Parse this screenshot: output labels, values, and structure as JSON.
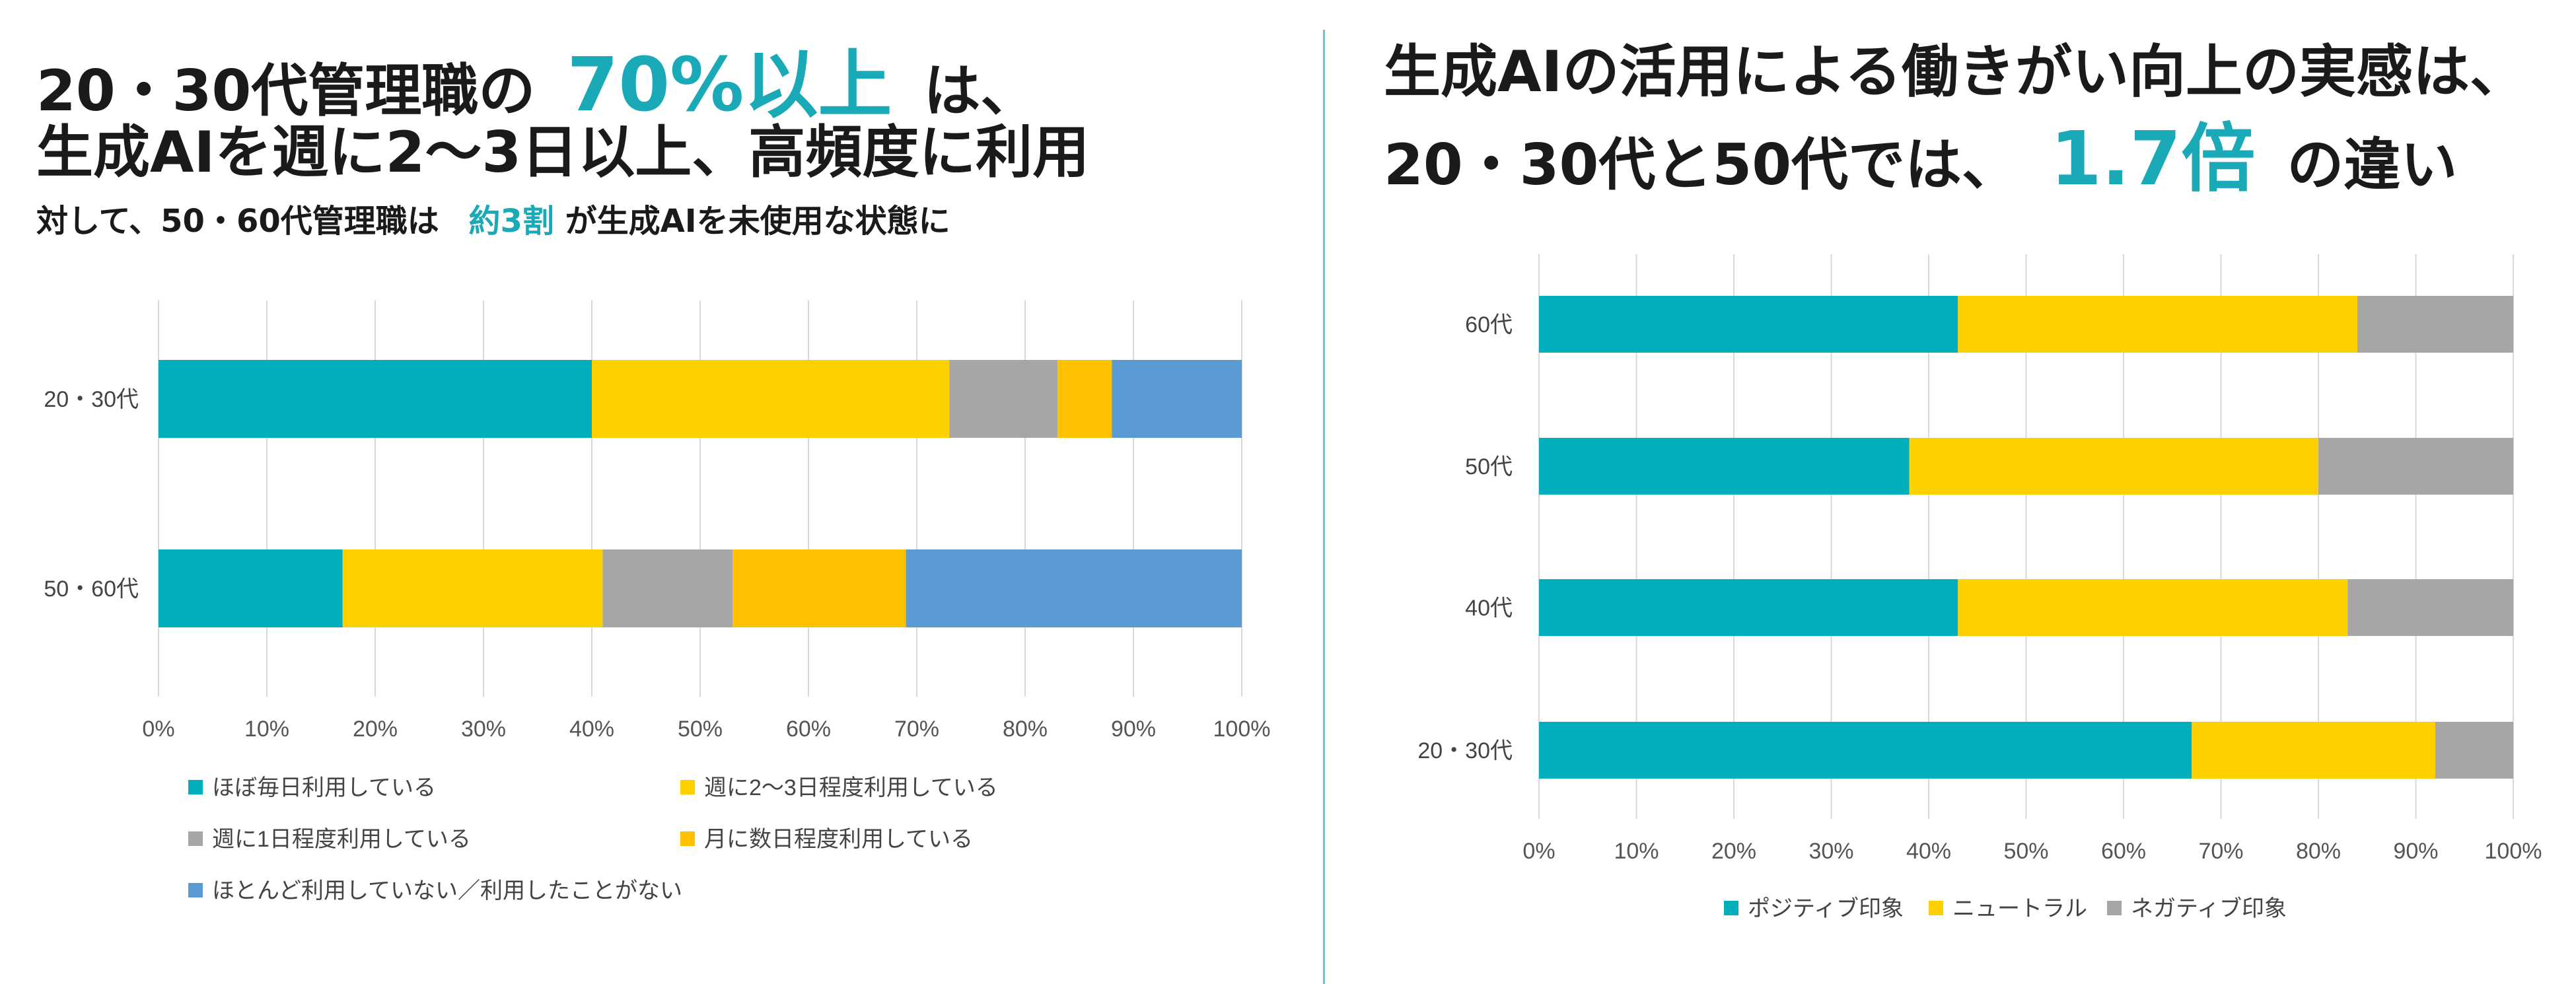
{
  "left": {
    "headline1_pre": "20・30代管理職の",
    "headline1_hl": "70%以上",
    "headline1_post": "は、",
    "headline2": "生成AIを週に2〜3日以上、高頻度に利用",
    "sub_pre": "対して、50・60代管理職は",
    "sub_hl": "約3割",
    "sub_post": "が生成AIを未使用な状態に"
  },
  "right": {
    "headline1": "生成AIの活用による働きがい向上の実感は、",
    "headline2_pre": "20・30代と50代では、",
    "headline2_hl": "1.7倍",
    "headline2_post": "の違い"
  },
  "colors": {
    "teal": "#00AFBB",
    "yellow": "#FFD000",
    "gray": "#A6A6A6",
    "orange": "#FFC000",
    "blue": "#5B9BD5",
    "accent": "#1AA9B7"
  },
  "chart_data": [
    {
      "type": "bar",
      "orientation": "horizontal",
      "stacked": "percent",
      "categories": [
        "20・30代",
        "50・60代"
      ],
      "series": [
        {
          "name": "ほぼ毎日利用している",
          "color": "#00AFBB",
          "values": [
            40,
            17
          ]
        },
        {
          "name": "週に2〜3日程度利用している",
          "color": "#FFD000",
          "values": [
            33,
            24
          ]
        },
        {
          "name": "週に1日程度利用している",
          "color": "#A6A6A6",
          "values": [
            10,
            12
          ]
        },
        {
          "name": "月に数日程度利用している",
          "color": "#FFC000",
          "values": [
            5,
            16
          ]
        },
        {
          "name": "ほとんど利用していない／利用したことがない",
          "color": "#5B9BD5",
          "values": [
            12,
            31
          ]
        }
      ],
      "xticks": [
        "0%",
        "10%",
        "20%",
        "30%",
        "40%",
        "50%",
        "60%",
        "70%",
        "80%",
        "90%",
        "100%"
      ],
      "xlim": [
        0,
        100
      ],
      "grid": true,
      "legend": "bottom"
    },
    {
      "type": "bar",
      "orientation": "horizontal",
      "stacked": "percent",
      "categories": [
        "60代",
        "50代",
        "40代",
        "20・30代"
      ],
      "series": [
        {
          "name": "ポジティブ印象",
          "color": "#00AFBB",
          "values": [
            43,
            38,
            43,
            67
          ]
        },
        {
          "name": "ニュートラル",
          "color": "#FFD000",
          "values": [
            41,
            42,
            40,
            25
          ]
        },
        {
          "name": "ネガティブ印象",
          "color": "#A6A6A6",
          "values": [
            16,
            20,
            17,
            8
          ]
        }
      ],
      "xticks": [
        "0%",
        "10%",
        "20%",
        "30%",
        "40%",
        "50%",
        "60%",
        "70%",
        "80%",
        "90%",
        "100%"
      ],
      "xlim": [
        0,
        100
      ],
      "grid": true,
      "legend": "bottom"
    }
  ]
}
